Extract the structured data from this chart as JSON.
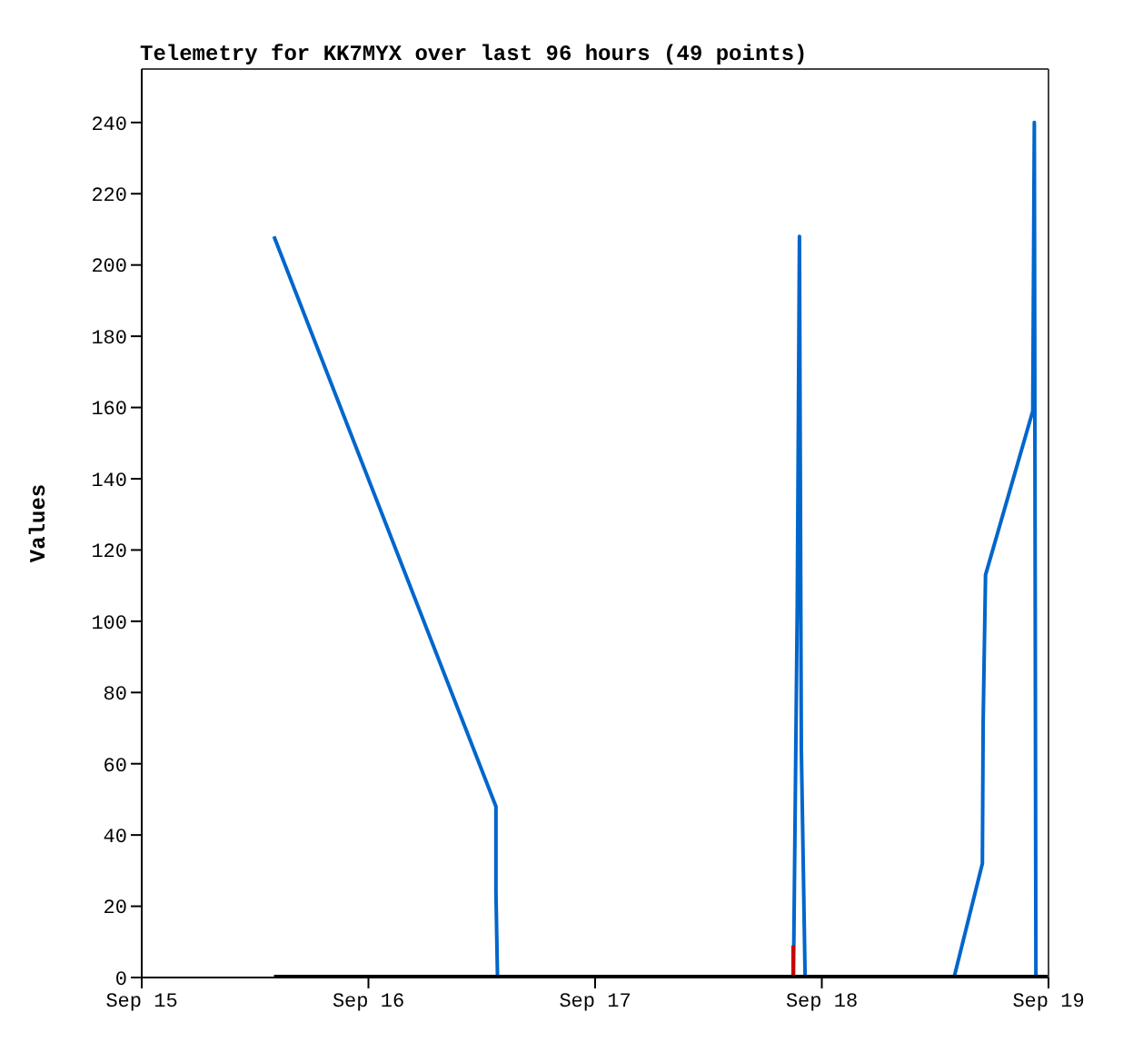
{
  "chart_data": {
    "type": "line",
    "title": "Telemetry for KK7MYX over last 96 hours (49 points)",
    "ylabel": "Values",
    "xlim": [
      "--09-15",
      "--09-19"
    ],
    "xticks": [
      {
        "value": "--09-15",
        "label": "Sep 15"
      },
      {
        "value": "--09-16",
        "label": "Sep 16"
      },
      {
        "value": "--09-17",
        "label": "Sep 17"
      },
      {
        "value": "--09-18",
        "label": "Sep 18"
      },
      {
        "value": "--09-19",
        "label": "Sep 19"
      }
    ],
    "ylim": [
      0,
      255
    ],
    "yticks": [
      0,
      20,
      40,
      60,
      80,
      100,
      120,
      140,
      160,
      180,
      200,
      220,
      240
    ],
    "marker": "none",
    "line_style": "solid",
    "series": [
      {
        "color": "#0066cc",
        "x": [
          "--09-15T14:00",
          "--09-16T13:30",
          "--09-16T13:30",
          "--09-16T13:40",
          "--09-16T13:50",
          "--09-17T21:00",
          "--09-17T21:24",
          "--09-17T21:38",
          "--09-17T21:50",
          "--09-17T22:02",
          "--09-17T22:14",
          "--09-18T14:00",
          "--09-18T17:00",
          "--09-18T17:05",
          "--09-18T17:20",
          "--09-18T22:20",
          "--09-18T22:30",
          "--09-18T22:40",
          "--09-19T00:00"
        ],
        "values": [
          208,
          48,
          24,
          0,
          0,
          0,
          104,
          208,
          64,
          32,
          0,
          0,
          32,
          72,
          113,
          159,
          240,
          0,
          0
        ]
      },
      {
        "color": "#cc0000",
        "x": [
          "--09-17T20:58",
          "--09-17T20:58"
        ],
        "values": [
          0,
          9
        ]
      },
      {
        "color": "#000000",
        "x": [
          "--09-15T14:00",
          "--09-19T00:00"
        ],
        "values": [
          0,
          0
        ]
      }
    ]
  }
}
